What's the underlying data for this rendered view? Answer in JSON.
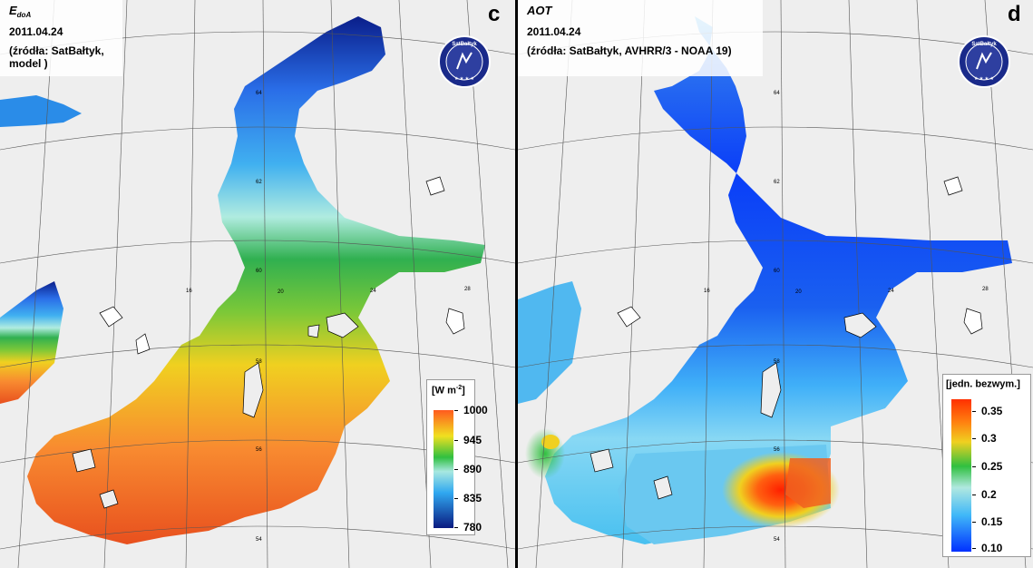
{
  "panels": [
    {
      "letter": "c",
      "title": "E",
      "title_sub": "doA",
      "date": "2011.04.24",
      "source": "(źródła: SatBałtyk, model )",
      "logo_text": "SatBałtyk",
      "legend": {
        "unit": "[W m",
        "unit_exp": "-2",
        "unit_close": "]",
        "labels": [
          "1000",
          "945",
          "890",
          "835",
          "780"
        ],
        "colors": [
          "#ff5a1e",
          "#f0e020",
          "#30c040",
          "#a8e8e0",
          "#30a8f0",
          "#0a1a80"
        ]
      }
    },
    {
      "letter": "d",
      "title": "AOT",
      "title_sub": "",
      "date": "2011.04.24",
      "source": "(źródła: SatBałtyk, AVHRR/3 - NOAA 19)",
      "logo_text": "SatBałtyk",
      "legend": {
        "unit": "[jedn. bezwym.]",
        "unit_exp": "",
        "unit_close": "",
        "labels": [
          "0.35",
          "0.3",
          "0.25",
          "0.2",
          "0.15",
          "0.10"
        ],
        "colors": [
          "#ff3000",
          "#f0d020",
          "#30c040",
          "#b0e8e0",
          "#40b8f8",
          "#0030ff"
        ]
      }
    }
  ],
  "map_labels": {
    "lat_64": "64",
    "lat_62": "62",
    "lat_60": "60",
    "lat_58": "58",
    "lat_56": "56",
    "lat_54": "54",
    "lon_16": "16",
    "lon_20": "20",
    "lon_24": "24",
    "lon_28": "28"
  }
}
